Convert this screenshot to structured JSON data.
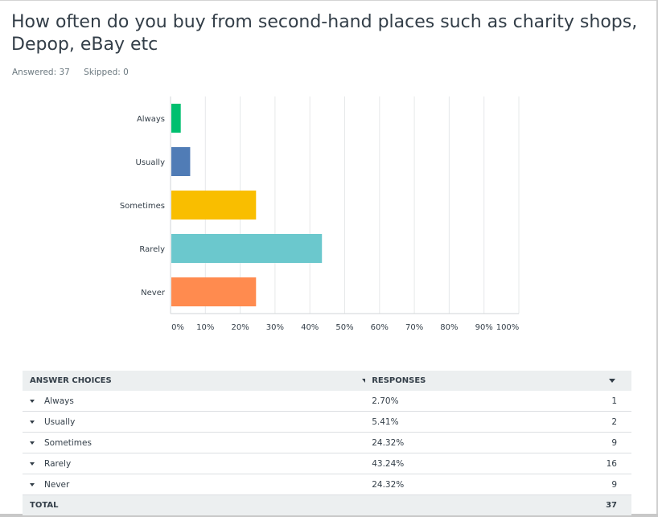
{
  "question": {
    "title": "How often do you buy from second-hand places such as charity shops, Depop, eBay etc",
    "answered": "Answered: 37",
    "skipped": "Skipped: 0"
  },
  "chart_data": {
    "type": "bar",
    "orientation": "horizontal",
    "categories": [
      "Always",
      "Usually",
      "Sometimes",
      "Rarely",
      "Never"
    ],
    "values": [
      2.7,
      5.41,
      24.32,
      43.24,
      24.32
    ],
    "colors": [
      "#00bf6f",
      "#507cb6",
      "#f9be00",
      "#6bc8cd",
      "#ff8b4f"
    ],
    "xlim": [
      0,
      100
    ],
    "x_ticks": [
      "0%",
      "10%",
      "20%",
      "30%",
      "40%",
      "50%",
      "60%",
      "70%",
      "80%",
      "90%",
      "100%"
    ],
    "grid": true
  },
  "table": {
    "header_choice": "ANSWER CHOICES",
    "header_responses": "RESPONSES",
    "rows": [
      {
        "label": "Always",
        "pct": "2.70%",
        "count": "1"
      },
      {
        "label": "Usually",
        "pct": "5.41%",
        "count": "2"
      },
      {
        "label": "Sometimes",
        "pct": "24.32%",
        "count": "9"
      },
      {
        "label": "Rarely",
        "pct": "43.24%",
        "count": "16"
      },
      {
        "label": "Never",
        "pct": "24.32%",
        "count": "9"
      }
    ],
    "total_label": "TOTAL",
    "total_count": "37"
  }
}
